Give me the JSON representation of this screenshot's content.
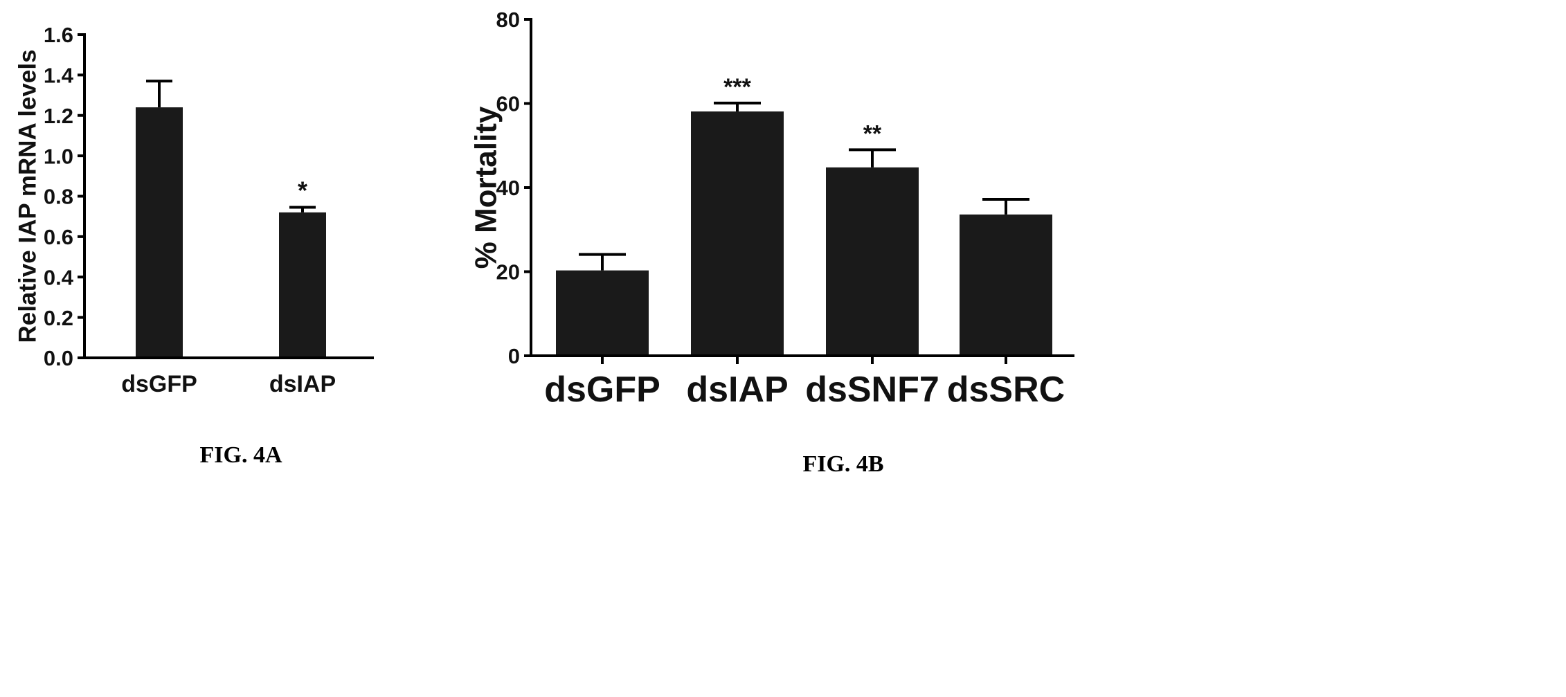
{
  "chart_data": [
    {
      "type": "bar",
      "caption": "FIG. 4A",
      "title": "",
      "xlabel": "",
      "ylabel": "Relative IAP mRNA levels",
      "categories": [
        "dsGFP",
        "dsIAP"
      ],
      "values": [
        1.24,
        0.72
      ],
      "errors": [
        0.13,
        0.025
      ],
      "significance": [
        "",
        "*"
      ],
      "ylim": [
        0,
        1.6
      ],
      "yticks": [
        "0.0",
        "0.2",
        "0.4",
        "0.6",
        "0.8",
        "1.0",
        "1.2",
        "1.4",
        "1.6"
      ],
      "bar_color": "#1a1a1a",
      "grid": false
    },
    {
      "type": "bar",
      "caption": "FIG. 4B",
      "title": "",
      "xlabel": "",
      "ylabel": "% Mortality",
      "categories": [
        "dsGFP",
        "dsIAP",
        "dsSNF7",
        "dsSRC"
      ],
      "values": [
        20.3,
        58.1,
        44.8,
        33.6
      ],
      "errors": [
        3.8,
        2.0,
        4.2,
        3.6
      ],
      "significance": [
        "",
        "***",
        "**",
        ""
      ],
      "ylim": [
        0,
        80
      ],
      "yticks": [
        "0",
        "20",
        "40",
        "60",
        "80"
      ],
      "bar_color": "#1a1a1a",
      "grid": false
    }
  ]
}
